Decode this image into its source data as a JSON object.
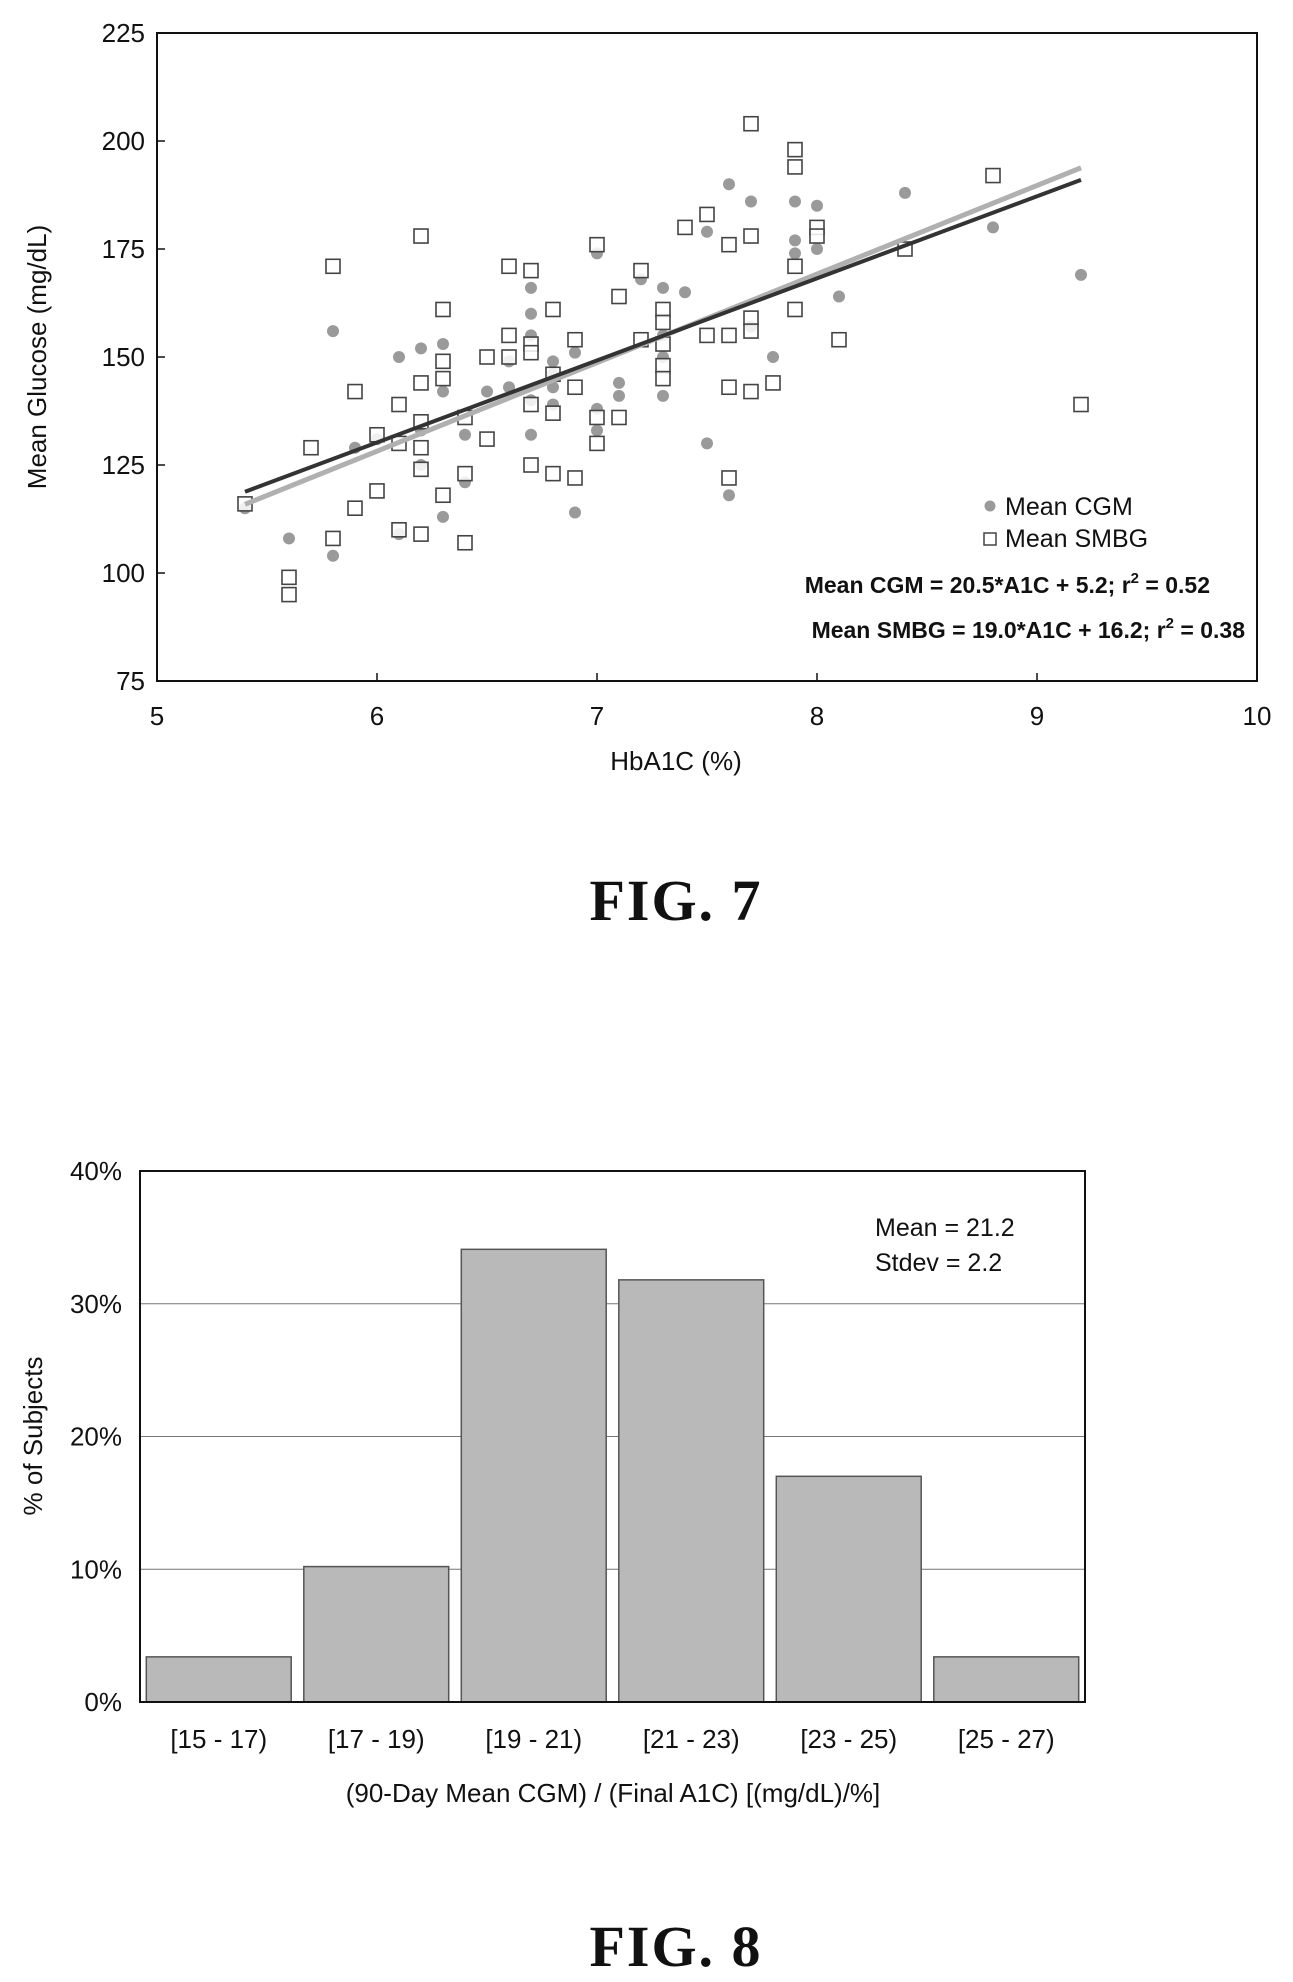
{
  "figures": [
    {
      "label": "FIG. 7"
    },
    {
      "label": "FIG. 8"
    }
  ],
  "chart_data": [
    {
      "type": "scatter",
      "xlabel": "HbA1C (%)",
      "ylabel": "Mean Glucose (mg/dL)",
      "xlim": [
        5,
        10
      ],
      "ylim": [
        75,
        225
      ],
      "xticks": [
        5,
        6,
        7,
        8,
        9,
        10
      ],
      "yticks": [
        75,
        100,
        125,
        150,
        175,
        200,
        225
      ],
      "legend_position": "bottom-right",
      "grid": false,
      "series": [
        {
          "name": "Mean CGM",
          "marker": "circle",
          "color": "#9a9a9a",
          "points": [
            [
              5.4,
              115
            ],
            [
              5.6,
              108
            ],
            [
              5.8,
              156
            ],
            [
              5.8,
              104
            ],
            [
              5.9,
              129
            ],
            [
              6.0,
              131
            ],
            [
              6.1,
              150
            ],
            [
              6.1,
              109
            ],
            [
              6.2,
              152
            ],
            [
              6.2,
              133
            ],
            [
              6.2,
              125
            ],
            [
              6.3,
              153
            ],
            [
              6.3,
              142
            ],
            [
              6.3,
              113
            ],
            [
              6.4,
              132
            ],
            [
              6.4,
              121
            ],
            [
              6.5,
              142
            ],
            [
              6.6,
              149
            ],
            [
              6.6,
              143
            ],
            [
              6.7,
              166
            ],
            [
              6.7,
              160
            ],
            [
              6.7,
              155
            ],
            [
              6.7,
              140
            ],
            [
              6.7,
              132
            ],
            [
              6.8,
              149
            ],
            [
              6.8,
              146
            ],
            [
              6.8,
              143
            ],
            [
              6.8,
              139
            ],
            [
              6.9,
              151
            ],
            [
              6.9,
              114
            ],
            [
              7.0,
              174
            ],
            [
              7.0,
              138
            ],
            [
              7.0,
              133
            ],
            [
              7.1,
              144
            ],
            [
              7.1,
              141
            ],
            [
              7.2,
              168
            ],
            [
              7.3,
              166
            ],
            [
              7.3,
              155
            ],
            [
              7.3,
              150
            ],
            [
              7.3,
              141
            ],
            [
              7.4,
              165
            ],
            [
              7.5,
              179
            ],
            [
              7.5,
              130
            ],
            [
              7.6,
              190
            ],
            [
              7.6,
              118
            ],
            [
              7.7,
              186
            ],
            [
              7.7,
              157
            ],
            [
              7.8,
              150
            ],
            [
              7.9,
              186
            ],
            [
              7.9,
              177
            ],
            [
              7.9,
              174
            ],
            [
              8.0,
              185
            ],
            [
              8.0,
              175
            ],
            [
              8.1,
              164
            ],
            [
              8.4,
              188
            ],
            [
              8.8,
              180
            ],
            [
              9.2,
              169
            ]
          ]
        },
        {
          "name": "Mean SMBG",
          "marker": "square",
          "color": "#444444",
          "points": [
            [
              5.4,
              116
            ],
            [
              5.6,
              99
            ],
            [
              5.6,
              95
            ],
            [
              5.7,
              129
            ],
            [
              5.8,
              171
            ],
            [
              5.8,
              108
            ],
            [
              5.9,
              142
            ],
            [
              5.9,
              115
            ],
            [
              6.0,
              132
            ],
            [
              6.0,
              119
            ],
            [
              6.1,
              139
            ],
            [
              6.1,
              130
            ],
            [
              6.1,
              110
            ],
            [
              6.2,
              178
            ],
            [
              6.2,
              144
            ],
            [
              6.2,
              135
            ],
            [
              6.2,
              129
            ],
            [
              6.2,
              124
            ],
            [
              6.2,
              109
            ],
            [
              6.3,
              161
            ],
            [
              6.3,
              149
            ],
            [
              6.3,
              145
            ],
            [
              6.3,
              118
            ],
            [
              6.4,
              136
            ],
            [
              6.4,
              123
            ],
            [
              6.4,
              107
            ],
            [
              6.5,
              150
            ],
            [
              6.5,
              131
            ],
            [
              6.6,
              171
            ],
            [
              6.6,
              155
            ],
            [
              6.6,
              150
            ],
            [
              6.7,
              170
            ],
            [
              6.7,
              153
            ],
            [
              6.7,
              151
            ],
            [
              6.7,
              139
            ],
            [
              6.7,
              125
            ],
            [
              6.8,
              161
            ],
            [
              6.8,
              146
            ],
            [
              6.8,
              137
            ],
            [
              6.8,
              123
            ],
            [
              6.9,
              154
            ],
            [
              6.9,
              143
            ],
            [
              6.9,
              122
            ],
            [
              7.0,
              176
            ],
            [
              7.0,
              136
            ],
            [
              7.0,
              130
            ],
            [
              7.1,
              164
            ],
            [
              7.1,
              136
            ],
            [
              7.2,
              170
            ],
            [
              7.2,
              154
            ],
            [
              7.3,
              161
            ],
            [
              7.3,
              158
            ],
            [
              7.3,
              153
            ],
            [
              7.3,
              148
            ],
            [
              7.3,
              145
            ],
            [
              7.4,
              180
            ],
            [
              7.5,
              183
            ],
            [
              7.5,
              155
            ],
            [
              7.6,
              176
            ],
            [
              7.6,
              155
            ],
            [
              7.6,
              143
            ],
            [
              7.6,
              122
            ],
            [
              7.7,
              204
            ],
            [
              7.7,
              178
            ],
            [
              7.7,
              159
            ],
            [
              7.7,
              156
            ],
            [
              7.7,
              142
            ],
            [
              7.8,
              144
            ],
            [
              7.9,
              198
            ],
            [
              7.9,
              194
            ],
            [
              7.9,
              171
            ],
            [
              7.9,
              161
            ],
            [
              8.0,
              180
            ],
            [
              8.0,
              178
            ],
            [
              8.1,
              154
            ],
            [
              8.4,
              175
            ],
            [
              8.8,
              192
            ],
            [
              9.2,
              139
            ]
          ]
        }
      ],
      "fits": [
        {
          "series": "Mean CGM",
          "slope": 20.5,
          "intercept": 5.2,
          "x_range": [
            5.4,
            9.2
          ],
          "color": "#b0b0b0"
        },
        {
          "series": "Mean SMBG",
          "slope": 19.0,
          "intercept": 16.2,
          "x_range": [
            5.4,
            9.2
          ],
          "color": "#333333"
        }
      ],
      "annotations": [
        {
          "text": "Mean CGM = 20.5*A1C + 5.2; r",
          "sup": "2",
          "tail": " = 0.52"
        },
        {
          "text": "Mean SMBG = 19.0*A1C + 16.2; r",
          "sup": "2",
          "tail": " = 0.38"
        }
      ]
    },
    {
      "type": "bar",
      "xlabel": "(90-Day Mean CGM) / (Final A1C) [(mg/dL)/%]",
      "ylabel": "% of Subjects",
      "categories": [
        "[15 - 17)",
        "[17 - 19)",
        "[19 - 21)",
        "[21 - 23)",
        "[23 - 25)",
        "[25 - 27)"
      ],
      "values": [
        3.4,
        10.2,
        34.1,
        31.8,
        17.0,
        3.4
      ],
      "ylim": [
        0,
        40
      ],
      "yticks": [
        "0%",
        "10%",
        "20%",
        "30%",
        "40%"
      ],
      "grid": true,
      "bar_color": "#b9b9b9",
      "annotations": [
        "Mean = 21.2",
        "Stdev = 2.2"
      ]
    }
  ]
}
